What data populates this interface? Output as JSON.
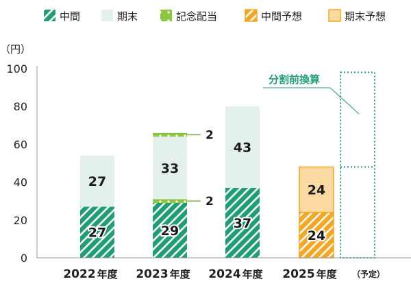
{
  "chart_data": {
    "type": "bar",
    "stacked": true,
    "y_unit_label": "（円）",
    "ylim": [
      0,
      100
    ],
    "yticks": [
      0,
      20,
      40,
      60,
      80,
      100
    ],
    "grid": false,
    "legend_position": "top",
    "categories": [
      {
        "year": "2022",
        "suffix": "年度",
        "note": ""
      },
      {
        "year": "2023",
        "suffix": "年度",
        "note": ""
      },
      {
        "year": "2024",
        "suffix": "年度",
        "note": ""
      },
      {
        "year": "2025",
        "suffix": "年度",
        "note": "（予定）"
      }
    ],
    "series": [
      {
        "name": "中間",
        "key": "interim",
        "values": [
          27,
          29,
          37,
          null
        ],
        "color": "#1f9e74",
        "pattern": "hatch"
      },
      {
        "name": "記念配当",
        "key": "commem1",
        "values": [
          null,
          2,
          null,
          null
        ],
        "color": "#8cc63f",
        "pattern": "dots"
      },
      {
        "name": "期末",
        "key": "final",
        "values": [
          27,
          33,
          43,
          null
        ],
        "color": "#e3f0eb",
        "pattern": "solid"
      },
      {
        "name": "記念配当",
        "key": "commem2",
        "values": [
          null,
          2,
          null,
          null
        ],
        "color": "#8cc63f",
        "pattern": "dots"
      },
      {
        "name": "中間予想",
        "key": "interim_fc",
        "values": [
          null,
          null,
          null,
          24
        ],
        "color": "#f5a623",
        "pattern": "hatch"
      },
      {
        "name": "期末予想",
        "key": "final_fc",
        "values": [
          null,
          null,
          null,
          24
        ],
        "color": "#fcd9a0",
        "pattern": "solid"
      }
    ],
    "bar_labels": [
      {
        "category": 0,
        "series": "interim",
        "text": "27",
        "side": "in"
      },
      {
        "category": 0,
        "series": "final",
        "text": "27",
        "side": "in"
      },
      {
        "category": 1,
        "series": "interim",
        "text": "29",
        "side": "in"
      },
      {
        "category": 1,
        "series": "final",
        "text": "33",
        "side": "in"
      },
      {
        "category": 1,
        "series": "commem1",
        "text": "2",
        "side": "out"
      },
      {
        "category": 1,
        "series": "commem2",
        "text": "2",
        "side": "out"
      },
      {
        "category": 2,
        "series": "interim",
        "text": "37",
        "side": "in"
      },
      {
        "category": 2,
        "series": "final",
        "text": "43",
        "side": "in"
      },
      {
        "category": 3,
        "series": "interim_fc",
        "text": "24",
        "side": "in"
      },
      {
        "category": 3,
        "series": "final_fc",
        "text": "24",
        "side": "in"
      }
    ],
    "pre_split_box": {
      "category": 4,
      "from": 0,
      "mid": 48,
      "to": 98,
      "color": "#1f9e74"
    },
    "annotation": {
      "text": "分割前換算",
      "color": "#1f9e74"
    }
  },
  "legend": [
    {
      "label": "中間",
      "key": "interim"
    },
    {
      "label": "期末",
      "key": "final"
    },
    {
      "label": "記念配当",
      "key": "commem1"
    },
    {
      "label": "中間予想",
      "key": "interim_fc"
    },
    {
      "label": "期末予想",
      "key": "final_fc"
    }
  ]
}
